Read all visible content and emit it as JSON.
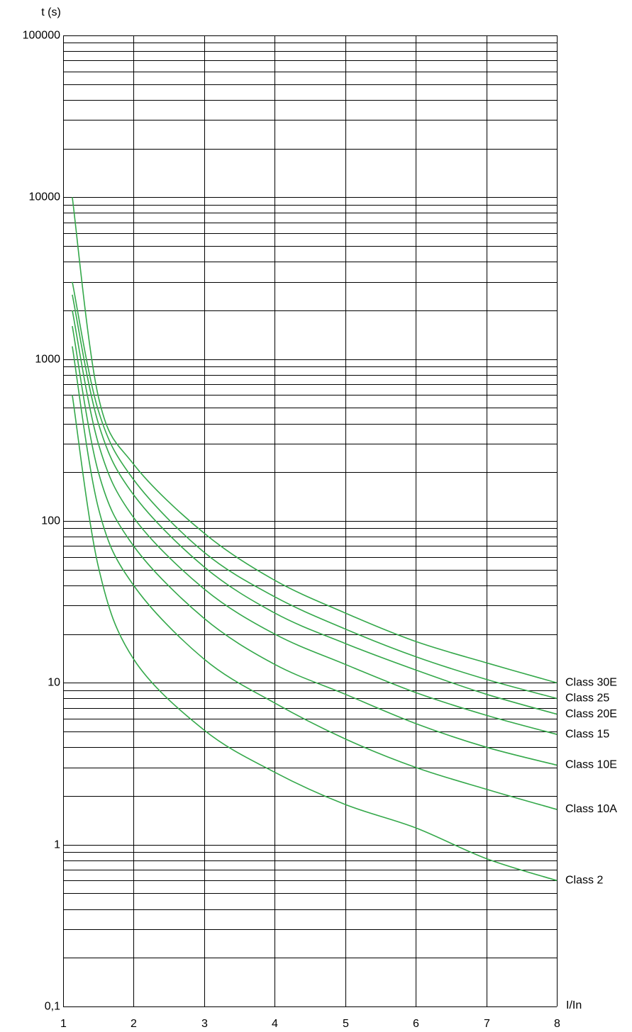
{
  "chart_data": {
    "type": "line",
    "y_label": "t (s)",
    "x_label": "I/In",
    "log_y": true,
    "grid": true,
    "xlim": [
      1,
      8
    ],
    "xticks": [
      1,
      2,
      3,
      4,
      5,
      6,
      7,
      8
    ],
    "ylim": [
      0.1,
      100000
    ],
    "yticks": [
      {
        "value": 0.1,
        "label": "0,1"
      },
      1,
      10,
      100,
      1000,
      10000,
      100000
    ],
    "yminorticks": [
      0.2,
      0.3,
      0.4,
      0.5,
      0.6,
      0.7,
      0.8,
      0.9,
      2,
      3,
      4,
      5,
      6,
      7,
      8,
      9,
      20,
      30,
      40,
      50,
      60,
      70,
      80,
      90,
      200,
      300,
      400,
      500,
      600,
      700,
      800,
      900,
      2000,
      3000,
      4000,
      5000,
      6000,
      7000,
      8000,
      9000,
      20000,
      30000,
      40000,
      50000,
      60000,
      70000,
      80000,
      90000
    ],
    "x": [
      1.13,
      1.5,
      2,
      3,
      4,
      5,
      6,
      7,
      8
    ],
    "series": [
      {
        "name": "Class 30E",
        "color": "#34a84a",
        "values": [
          10000,
          585,
          224,
          84,
          43,
          27,
          18,
          13.3,
          10
        ]
      },
      {
        "name": "Class 25",
        "color": "#34a84a",
        "values": [
          3000,
          480,
          180,
          64,
          34,
          21.5,
          14.5,
          10.5,
          8
        ]
      },
      {
        "name": "Class 20E",
        "color": "#34a84a",
        "values": [
          2500,
          400,
          145,
          52,
          27,
          17.5,
          12,
          8.5,
          6.4
        ]
      },
      {
        "name": "Class 15",
        "color": "#34a84a",
        "values": [
          2000,
          300,
          105,
          38,
          20,
          13,
          8.7,
          6.3,
          4.8
        ]
      },
      {
        "name": "Class 10E",
        "color": "#34a84a",
        "values": [
          1600,
          200,
          70,
          25,
          13,
          8.5,
          5.6,
          4,
          3.1
        ]
      },
      {
        "name": "Class 10A",
        "color": "#34a84a",
        "values": [
          1200,
          120,
          40,
          14,
          7.5,
          4.5,
          3,
          2.2,
          1.65
        ]
      },
      {
        "name": "Class 2",
        "color": "#34a84a",
        "values": [
          600,
          52,
          14,
          5.1,
          2.8,
          1.77,
          1.27,
          0.82,
          0.6
        ]
      }
    ]
  }
}
